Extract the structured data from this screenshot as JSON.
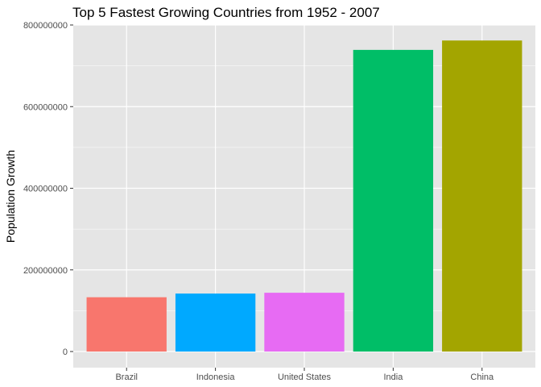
{
  "chart_data": {
    "type": "bar",
    "title": "Top 5 Fastest Growing Countries from 1952 - 2007",
    "xlabel": "",
    "ylabel": "Population Growth",
    "categories": [
      "Brazil",
      "Indonesia",
      "United States",
      "India",
      "China"
    ],
    "values": [
      133000000,
      142000000,
      144000000,
      739000000,
      762000000
    ],
    "colors": [
      "#F8766D",
      "#00A9FF",
      "#E76BF3",
      "#00BE67",
      "#A3A500"
    ],
    "ylim": [
      0,
      800000000
    ],
    "yticks": [
      0,
      200000000,
      400000000,
      600000000,
      800000000
    ],
    "ytick_labels": [
      "0",
      "200000000",
      "400000000",
      "600000000",
      "800000000"
    ],
    "grid": true,
    "background": "#E5E5E5",
    "gridline_color": "#FFFFFF"
  }
}
